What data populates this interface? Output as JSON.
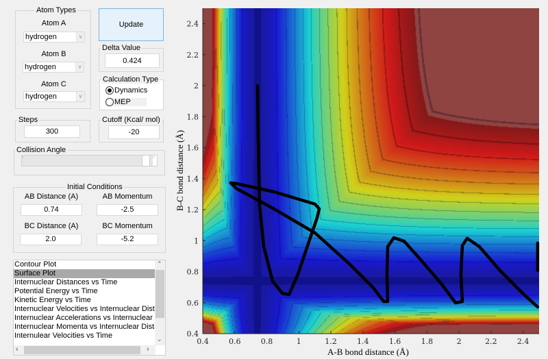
{
  "atom_types": {
    "title": "Atom Types",
    "atoms": [
      {
        "label": "Atom A",
        "value": "hydrogen"
      },
      {
        "label": "Atom B",
        "value": "hydrogen"
      },
      {
        "label": "Atom C",
        "value": "hydrogen"
      }
    ]
  },
  "update_label": "Update",
  "delta": {
    "title": "Delta Value",
    "value": "0.424"
  },
  "calc_type": {
    "title": "Calculation Type",
    "options": [
      "Dynamics",
      "MEP"
    ],
    "selected": "Dynamics"
  },
  "steps": {
    "title": "Steps",
    "value": "300"
  },
  "cutoff": {
    "title": "Cutoff (Kcal/ mol)",
    "value": "-20"
  },
  "collision_angle": {
    "title": "Collision Angle"
  },
  "initial": {
    "title": "Initial Conditions",
    "ab_dist_label": "AB Distance (A)",
    "ab_dist": "0.74",
    "ab_mom_label": "AB Momentum",
    "ab_mom": "-2.5",
    "bc_dist_label": "BC Distance (A)",
    "bc_dist": "2.0",
    "bc_mom_label": "BC Momentum",
    "bc_mom": "-5.2"
  },
  "plot_list": {
    "items": [
      "Contour Plot",
      "Surface Plot",
      "Internuclear Distances vs Time",
      "Potential Energy vs Time",
      "Kinetic Energy vs Time",
      "Internuclear Velocities vs Internuclear Distance",
      "Internuclear Accelerations vs Internuclear Distance",
      "Internuclear Momenta vs Internuclear Distance",
      "Internulear Velocities vs Time"
    ],
    "selected": "Surface Plot"
  },
  "chart_data": {
    "type": "heatmap",
    "colormap": "jet",
    "xlabel": "A-B bond distance (Å)",
    "ylabel": "B-C bond distance (Å)",
    "xlim": [
      0.4,
      2.5
    ],
    "ylim": [
      0.4,
      2.5
    ],
    "xticks": [
      "0.4",
      "0.6",
      "0.8",
      "1",
      "1.2",
      "1.4",
      "1.6",
      "1.8",
      "2",
      "2.2",
      "2.4"
    ],
    "yticks": [
      "0.4",
      "0.6",
      "0.8",
      "1",
      "1.2",
      "1.4",
      "1.6",
      "1.8",
      "2",
      "2.2",
      "2.4"
    ],
    "trajectory": [
      [
        0.742,
        2.0
      ],
      [
        0.746,
        1.669
      ],
      [
        0.755,
        1.227
      ],
      [
        0.781,
        0.961
      ],
      [
        0.836,
        0.74
      ],
      [
        0.896,
        0.661
      ],
      [
        0.939,
        0.652
      ],
      [
        0.995,
        0.785
      ],
      [
        1.067,
        1.006
      ],
      [
        1.114,
        1.147
      ],
      [
        1.127,
        1.205
      ],
      [
        1.101,
        1.236
      ],
      [
        0.845,
        1.315
      ],
      [
        0.61,
        1.368
      ],
      [
        0.575,
        1.373
      ],
      [
        0.61,
        1.337
      ],
      [
        0.845,
        1.205
      ],
      [
        1.101,
        1.05
      ],
      [
        1.315,
        0.851
      ],
      [
        1.465,
        0.696
      ],
      [
        1.529,
        0.608
      ],
      [
        1.555,
        0.608
      ],
      [
        1.55,
        0.785
      ],
      [
        1.555,
        0.961
      ],
      [
        1.593,
        1.019
      ],
      [
        1.657,
        0.997
      ],
      [
        1.764,
        0.873
      ],
      [
        1.893,
        0.718
      ],
      [
        1.978,
        0.599
      ],
      [
        2.021,
        0.608
      ],
      [
        2.012,
        0.785
      ],
      [
        2.021,
        0.97
      ],
      [
        2.051,
        1.015
      ],
      [
        2.128,
        0.961
      ],
      [
        2.256,
        0.807
      ],
      [
        2.406,
        0.652
      ],
      [
        2.491,
        0.572
      ]
    ],
    "trajectory_reentry": [
      [
        2.491,
        0.984
      ],
      [
        2.491,
        0.807
      ]
    ]
  }
}
